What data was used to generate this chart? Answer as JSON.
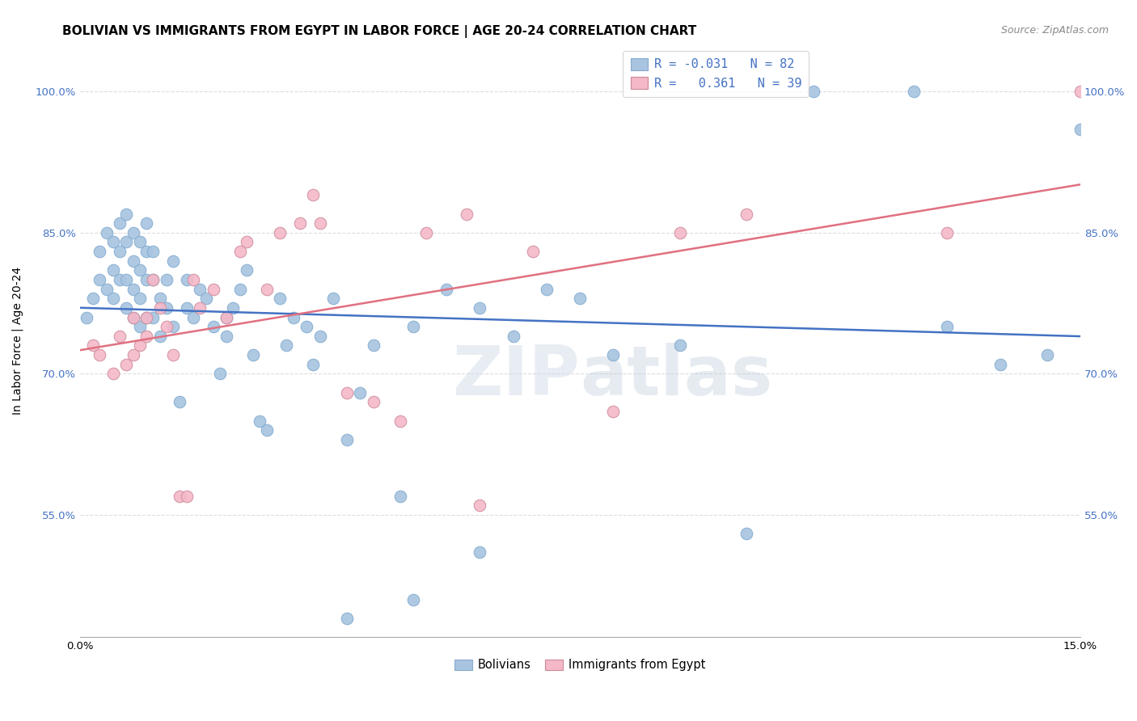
{
  "title": "BOLIVIAN VS IMMIGRANTS FROM EGYPT IN LABOR FORCE | AGE 20-24 CORRELATION CHART",
  "source": "Source: ZipAtlas.com",
  "ylabel": "In Labor Force | Age 20-24",
  "xlim": [
    0.0,
    0.15
  ],
  "ylim": [
    0.42,
    1.05
  ],
  "ytick_values": [
    0.55,
    0.7,
    0.85,
    1.0
  ],
  "ytick_labels": [
    "55.0%",
    "70.0%",
    "85.0%",
    "100.0%"
  ],
  "xtick_values": [
    0.0,
    0.015,
    0.03,
    0.045,
    0.06,
    0.075,
    0.09,
    0.105,
    0.12,
    0.135,
    0.15
  ],
  "xtick_labels": [
    "0.0%",
    "",
    "",
    "",
    "",
    "",
    "",
    "",
    "",
    "",
    "15.0%"
  ],
  "blue_color": "#a8c4e0",
  "pink_color": "#f4b8c8",
  "blue_line_color": "#4472C4",
  "pink_line_color": "#E07080",
  "watermark_color": "#cdd9e5",
  "bolivians_x": [
    0.001,
    0.002,
    0.003,
    0.003,
    0.004,
    0.004,
    0.005,
    0.005,
    0.005,
    0.006,
    0.006,
    0.006,
    0.007,
    0.007,
    0.007,
    0.007,
    0.008,
    0.008,
    0.008,
    0.008,
    0.009,
    0.009,
    0.009,
    0.009,
    0.01,
    0.01,
    0.01,
    0.01,
    0.011,
    0.011,
    0.011,
    0.012,
    0.012,
    0.013,
    0.013,
    0.014,
    0.014,
    0.015,
    0.016,
    0.016,
    0.017,
    0.018,
    0.019,
    0.02,
    0.021,
    0.022,
    0.022,
    0.023,
    0.024,
    0.025,
    0.026,
    0.027,
    0.028,
    0.03,
    0.031,
    0.032,
    0.034,
    0.035,
    0.036,
    0.038,
    0.04,
    0.042,
    0.044,
    0.048,
    0.05,
    0.055,
    0.06,
    0.065,
    0.07,
    0.075,
    0.08,
    0.09,
    0.1,
    0.11,
    0.125,
    0.13,
    0.138,
    0.145,
    0.15,
    0.05,
    0.06,
    0.04
  ],
  "bolivians_y": [
    0.76,
    0.78,
    0.8,
    0.83,
    0.79,
    0.85,
    0.78,
    0.81,
    0.84,
    0.8,
    0.83,
    0.86,
    0.77,
    0.8,
    0.84,
    0.87,
    0.76,
    0.79,
    0.82,
    0.85,
    0.75,
    0.78,
    0.81,
    0.84,
    0.76,
    0.8,
    0.83,
    0.86,
    0.76,
    0.8,
    0.83,
    0.74,
    0.78,
    0.77,
    0.8,
    0.75,
    0.82,
    0.67,
    0.77,
    0.8,
    0.76,
    0.79,
    0.78,
    0.75,
    0.7,
    0.76,
    0.74,
    0.77,
    0.79,
    0.81,
    0.72,
    0.65,
    0.64,
    0.78,
    0.73,
    0.76,
    0.75,
    0.71,
    0.74,
    0.78,
    0.63,
    0.68,
    0.73,
    0.57,
    0.75,
    0.79,
    0.77,
    0.74,
    0.79,
    0.78,
    0.72,
    0.73,
    0.53,
    1.0,
    1.0,
    0.75,
    0.71,
    0.72,
    0.96,
    0.46,
    0.51,
    0.44
  ],
  "egypt_x": [
    0.002,
    0.003,
    0.005,
    0.006,
    0.007,
    0.008,
    0.008,
    0.009,
    0.01,
    0.01,
    0.011,
    0.012,
    0.013,
    0.014,
    0.015,
    0.016,
    0.017,
    0.018,
    0.02,
    0.022,
    0.024,
    0.025,
    0.028,
    0.03,
    0.033,
    0.035,
    0.036,
    0.04,
    0.044,
    0.048,
    0.052,
    0.058,
    0.06,
    0.068,
    0.08,
    0.09,
    0.1,
    0.13,
    0.15
  ],
  "egypt_y": [
    0.73,
    0.72,
    0.7,
    0.74,
    0.71,
    0.72,
    0.76,
    0.73,
    0.74,
    0.76,
    0.8,
    0.77,
    0.75,
    0.72,
    0.57,
    0.57,
    0.8,
    0.77,
    0.79,
    0.76,
    0.83,
    0.84,
    0.79,
    0.85,
    0.86,
    0.89,
    0.86,
    0.68,
    0.67,
    0.65,
    0.85,
    0.87,
    0.56,
    0.83,
    0.66,
    0.85,
    0.87,
    0.85,
    1.0
  ],
  "background_color": "#ffffff",
  "grid_color": "#dddddd",
  "title_fontsize": 11,
  "axis_label_fontsize": 10,
  "tick_fontsize": 9.5,
  "source_fontsize": 9
}
